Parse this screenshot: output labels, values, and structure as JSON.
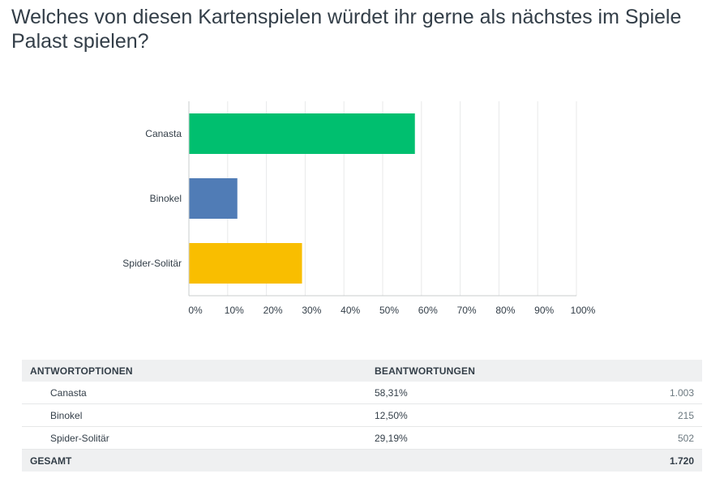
{
  "question": {
    "title": "Welches von diesen Kartenspielen würdet ihr gerne als nächstes im Spiele Palast spielen?"
  },
  "chart_data": {
    "type": "bar",
    "orientation": "horizontal",
    "categories": [
      "Canasta",
      "Binokel",
      "Spider-Solitär"
    ],
    "values": [
      58.31,
      12.5,
      29.19
    ],
    "colors": [
      "#00bf6f",
      "#507cb6",
      "#f9be00"
    ],
    "xlim": [
      0,
      100
    ],
    "x_ticks": [
      "0%",
      "10%",
      "20%",
      "30%",
      "40%",
      "50%",
      "60%",
      "70%",
      "80%",
      "90%",
      "100%"
    ],
    "grid": true
  },
  "table": {
    "headers": [
      "ANTWORTOPTIONEN",
      "BEANTWORTUNGEN"
    ],
    "rows": [
      {
        "option": "Canasta",
        "percent": "58,31%",
        "count": "1.003"
      },
      {
        "option": "Binokel",
        "percent": "12,50%",
        "count": "215"
      },
      {
        "option": "Spider-Solitär",
        "percent": "29,19%",
        "count": "502"
      }
    ],
    "total": {
      "label": "GESAMT",
      "count": "1.720"
    }
  }
}
